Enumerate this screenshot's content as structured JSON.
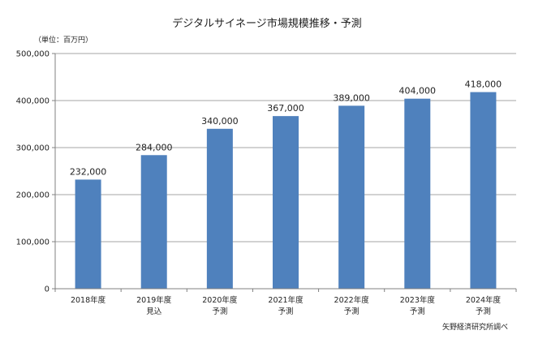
{
  "chart_data": {
    "type": "bar",
    "title": "デジタルサイネージ市場規模推移・予測",
    "unit_label": "（単位：百万円）",
    "source": "矢野経済研究所調べ",
    "categories": [
      {
        "year": "2018年度",
        "note": ""
      },
      {
        "year": "2019年度",
        "note": "見込"
      },
      {
        "year": "2020年度",
        "note": "予測"
      },
      {
        "year": "2021年度",
        "note": "予測"
      },
      {
        "year": "2022年度",
        "note": "予測"
      },
      {
        "year": "2023年度",
        "note": "予測"
      },
      {
        "year": "2024年度",
        "note": "予測"
      }
    ],
    "values": [
      232000,
      284000,
      340000,
      367000,
      389000,
      404000,
      418000
    ],
    "value_labels": [
      "232,000",
      "284,000",
      "340,000",
      "367,000",
      "389,000",
      "404,000",
      "418,000"
    ],
    "ylim": [
      0,
      500000
    ],
    "yticks": [
      0,
      100000,
      200000,
      300000,
      400000,
      500000
    ],
    "ytick_labels": [
      "0",
      "100,000",
      "200,000",
      "300,000",
      "400,000",
      "500,000"
    ],
    "grid": true,
    "colors": {
      "bar": "#4f81bd",
      "grid": "#a6a6a6",
      "axis": "#808080"
    }
  }
}
